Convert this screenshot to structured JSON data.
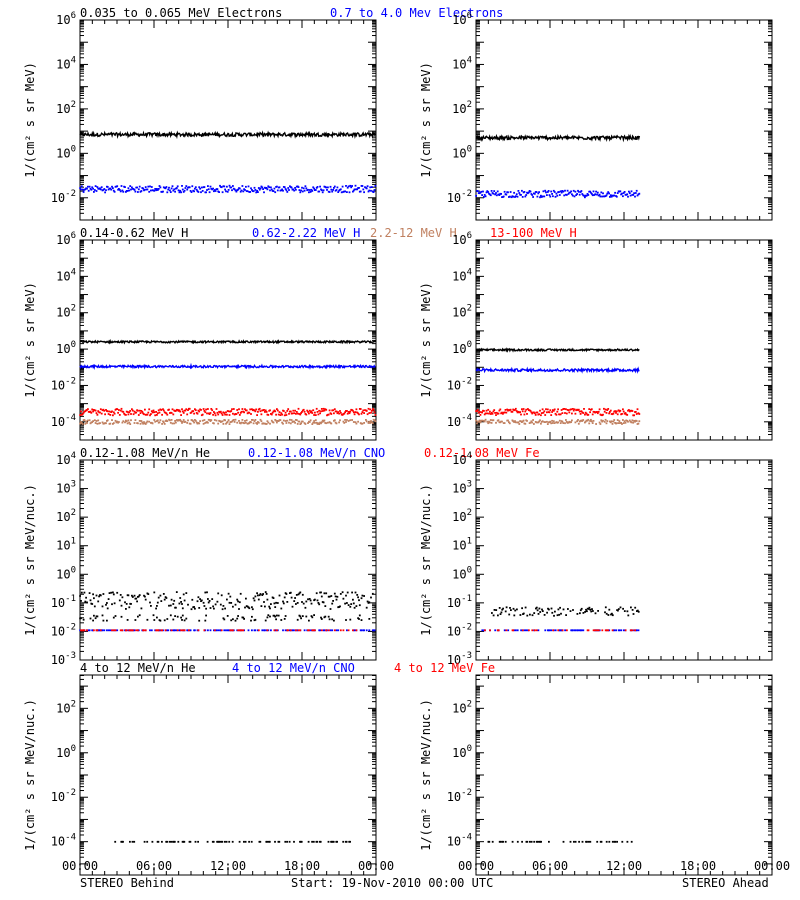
{
  "footer": {
    "left": "STEREO Behind",
    "center": "Start: 19-Nov-2010 00:00 UTC",
    "right": "STEREO Ahead"
  },
  "colors": {
    "black": "#000000",
    "blue": "#0000ff",
    "tan": "#c08060",
    "red": "#ff0000"
  },
  "x_tick_labels": [
    "00:00",
    "06:00",
    "12:00",
    "18:00",
    "00:00"
  ],
  "chart_data": [
    {
      "type": "scatter",
      "row": 0,
      "ylabel": "1/(cm² s sr MeV)",
      "ylim_exp": [
        -3,
        6
      ],
      "y_ticks": [
        {
          "base": "10",
          "exp": "-2",
          "e": -2
        },
        {
          "base": "10",
          "exp": "0",
          "e": 0
        },
        {
          "base": "10",
          "exp": "2",
          "e": 2
        },
        {
          "base": "10",
          "exp": "4",
          "e": 4
        },
        {
          "base": "10",
          "exp": "6",
          "e": 6
        }
      ],
      "log_y": true,
      "x_range_hours": [
        0,
        24
      ],
      "legend": [
        {
          "name": "0.035 to 0.065 MeV Electrons",
          "color": "#000000"
        },
        {
          "name": "0.7 to 4.0 Mev Electrons",
          "color": "#0000ff"
        }
      ],
      "behind": [
        {
          "series": 0,
          "level": 7,
          "spread": 0.08,
          "x0": 0,
          "x1": 24,
          "density": 1,
          "symbol": "line"
        },
        {
          "series": 1,
          "level": 0.025,
          "spread": 0.15,
          "x0": 0,
          "x1": 24,
          "density": 1,
          "symbol": "dots"
        }
      ],
      "ahead": [
        {
          "series": 0,
          "level": 5,
          "spread": 0.08,
          "x0": 0,
          "x1": 13.3,
          "density": 1,
          "symbol": "line"
        },
        {
          "series": 1,
          "level": 0.015,
          "spread": 0.15,
          "x0": 0,
          "x1": 13.3,
          "density": 1,
          "symbol": "dots"
        }
      ]
    },
    {
      "type": "scatter",
      "row": 1,
      "ylabel": "1/(cm² s sr MeV)",
      "ylim_exp": [
        -5,
        6
      ],
      "y_ticks": [
        {
          "base": "10",
          "exp": "-4",
          "e": -4
        },
        {
          "base": "10",
          "exp": "-2",
          "e": -2
        },
        {
          "base": "10",
          "exp": "0",
          "e": 0
        },
        {
          "base": "10",
          "exp": "2",
          "e": 2
        },
        {
          "base": "10",
          "exp": "4",
          "e": 4
        },
        {
          "base": "10",
          "exp": "6",
          "e": 6
        }
      ],
      "log_y": true,
      "x_range_hours": [
        0,
        24
      ],
      "legend": [
        {
          "name": "0.14-0.62 MeV H",
          "color": "#000000"
        },
        {
          "name": "0.62-2.22 MeV H",
          "color": "#0000ff"
        },
        {
          "name": "2.2-12 MeV H",
          "color": "#c08060"
        },
        {
          "name": "13-100 MeV H",
          "color": "#ff0000"
        }
      ],
      "behind": [
        {
          "series": 0,
          "level": 2.5,
          "spread": 0.05,
          "x0": 0,
          "x1": 24,
          "density": 1,
          "symbol": "line"
        },
        {
          "series": 1,
          "level": 0.11,
          "spread": 0.06,
          "x0": 0,
          "x1": 24,
          "density": 1,
          "symbol": "line"
        },
        {
          "series": 3,
          "level": 0.00035,
          "spread": 0.18,
          "x0": 0,
          "x1": 24,
          "density": 1,
          "symbol": "dots"
        },
        {
          "series": 2,
          "level": 0.0001,
          "spread": 0.12,
          "x0": 0,
          "x1": 24,
          "density": 0.8,
          "symbol": "dots"
        }
      ],
      "ahead": [
        {
          "series": 0,
          "level": 0.9,
          "spread": 0.05,
          "x0": 0,
          "x1": 13.3,
          "density": 1,
          "symbol": "line"
        },
        {
          "series": 1,
          "level": 0.07,
          "spread": 0.07,
          "x0": 0,
          "x1": 13.3,
          "density": 1,
          "symbol": "line"
        },
        {
          "series": 3,
          "level": 0.00035,
          "spread": 0.18,
          "x0": 0,
          "x1": 13.3,
          "density": 1,
          "symbol": "dots"
        },
        {
          "series": 2,
          "level": 0.0001,
          "spread": 0.12,
          "x0": 0,
          "x1": 13.3,
          "density": 0.8,
          "symbol": "dots"
        }
      ]
    },
    {
      "type": "scatter",
      "row": 2,
      "ylabel": "1/(cm² s sr MeV/nuc.)",
      "ylim_exp": [
        -3,
        4
      ],
      "y_ticks": [
        {
          "base": "10",
          "exp": "-3",
          "e": -3
        },
        {
          "base": "10",
          "exp": "-2",
          "e": -2
        },
        {
          "base": "10",
          "exp": "-1",
          "e": -1
        },
        {
          "base": "10",
          "exp": "0",
          "e": 0
        },
        {
          "base": "10",
          "exp": "1",
          "e": 1
        },
        {
          "base": "10",
          "exp": "2",
          "e": 2
        },
        {
          "base": "10",
          "exp": "3",
          "e": 3
        },
        {
          "base": "10",
          "exp": "4",
          "e": 4
        }
      ],
      "log_y": true,
      "x_range_hours": [
        0,
        24
      ],
      "legend": [
        {
          "name": "0.12-1.08 MeV/n He",
          "color": "#000000"
        },
        {
          "name": "0.12-1.08 MeV/n CNO",
          "color": "#0000ff"
        },
        {
          "name": "0.12-1.08 MeV Fe",
          "color": "#ff0000"
        }
      ],
      "behind": [
        {
          "series": 0,
          "level": 0.12,
          "spread": 0.3,
          "x0": 0,
          "x1": 24,
          "density": 0.75,
          "symbol": "dots"
        },
        {
          "series": 0,
          "level": 0.03,
          "spread": 0.1,
          "x0": 0,
          "x1": 24,
          "density": 0.25,
          "symbol": "dots"
        },
        {
          "series": 1,
          "level": 0.011,
          "spread": 0.0,
          "x0": 0,
          "x1": 24,
          "density": 0.45,
          "symbol": "dots"
        },
        {
          "series": 2,
          "level": 0.011,
          "spread": 0.0,
          "x0": 0,
          "x1": 24,
          "density": 0.2,
          "symbol": "dots"
        }
      ],
      "ahead": [
        {
          "series": 0,
          "level": 0.05,
          "spread": 0.15,
          "x0": 1,
          "x1": 13.3,
          "density": 0.5,
          "symbol": "dots"
        },
        {
          "series": 1,
          "level": 0.011,
          "spread": 0.0,
          "x0": 0.5,
          "x1": 13.3,
          "density": 0.35,
          "symbol": "dots"
        },
        {
          "series": 2,
          "level": 0.011,
          "spread": 0.0,
          "x0": 0.5,
          "x1": 13.3,
          "density": 0.15,
          "symbol": "dots"
        }
      ]
    },
    {
      "type": "scatter",
      "row": 3,
      "ylabel": "1/(cm² s sr MeV/nuc.)",
      "ylim_exp": [
        -5.5,
        3.5
      ],
      "y_ticks": [
        {
          "base": "10",
          "exp": "-4",
          "e": -4
        },
        {
          "base": "10",
          "exp": "-2",
          "e": -2
        },
        {
          "base": "10",
          "exp": "0",
          "e": 0
        },
        {
          "base": "10",
          "exp": "2",
          "e": 2
        }
      ],
      "log_y": true,
      "x_range_hours": [
        0,
        24
      ],
      "legend": [
        {
          "name": "4 to 12 MeV/n He",
          "color": "#000000"
        },
        {
          "name": "4 to 12 MeV/n CNO",
          "color": "#0000ff"
        },
        {
          "name": "4 to 12 MeV Fe",
          "color": "#ff0000"
        }
      ],
      "behind": [
        {
          "series": 0,
          "level": 0.0001,
          "spread": 0.0,
          "x0": 2.5,
          "x1": 22,
          "density": 0.3,
          "symbol": "dots"
        }
      ],
      "ahead": [
        {
          "series": 0,
          "level": 0.0001,
          "spread": 0.0,
          "x0": 1,
          "x1": 12.8,
          "density": 0.25,
          "symbol": "dots"
        }
      ]
    }
  ]
}
